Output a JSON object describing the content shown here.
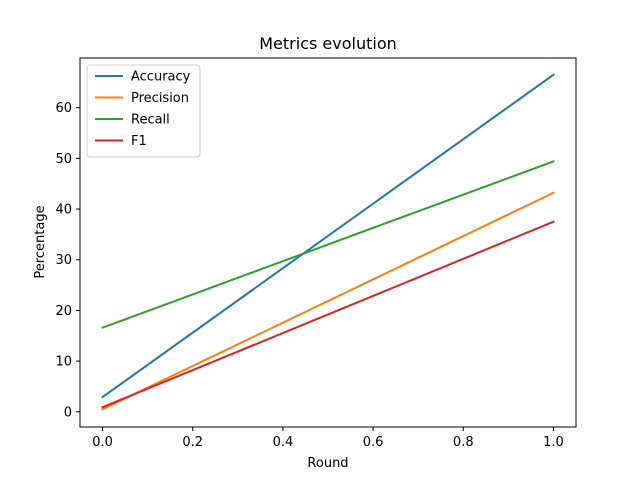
{
  "chart_data": {
    "type": "line",
    "title": "Metrics evolution",
    "xlabel": "Round",
    "ylabel": "Percentage",
    "x": [
      0.0,
      1.0
    ],
    "xlim": [
      -0.05,
      1.05
    ],
    "ylim": [
      -3.0,
      69.8
    ],
    "xticks": [
      0.0,
      0.2,
      0.4,
      0.6,
      0.8,
      1.0
    ],
    "xtick_labels": [
      "0.0",
      "0.2",
      "0.4",
      "0.6",
      "0.8",
      "1.0"
    ],
    "yticks": [
      0,
      10,
      20,
      30,
      40,
      50,
      60
    ],
    "ytick_labels": [
      "0",
      "10",
      "20",
      "30",
      "40",
      "50",
      "60"
    ],
    "grid": false,
    "legend_position": "top-left",
    "series": [
      {
        "name": "Accuracy",
        "color": "#1f77b4",
        "values": [
          2.9,
          66.5
        ]
      },
      {
        "name": "Precision",
        "color": "#ff7f0e",
        "values": [
          0.5,
          43.2
        ]
      },
      {
        "name": "Recall",
        "color": "#2ca02c",
        "values": [
          16.6,
          49.4
        ]
      },
      {
        "name": "F1",
        "color": "#d62728",
        "values": [
          0.9,
          37.5
        ]
      }
    ]
  }
}
